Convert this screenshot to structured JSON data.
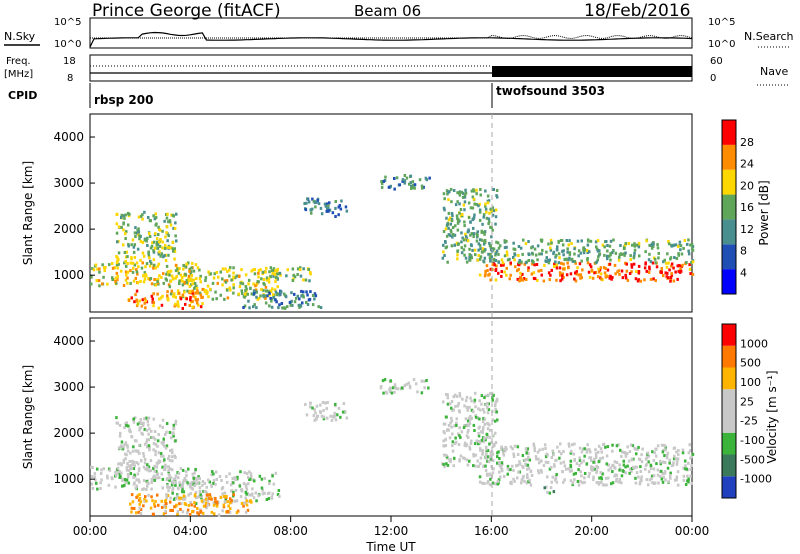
{
  "header": {
    "title": "Prince George (fitACF)",
    "beam": "Beam 06",
    "date": "18/Feb/2016"
  },
  "noise_panel": {
    "left_label": "N.Sky",
    "right_label": "N.Search",
    "left_ticks": [
      "10^5",
      "10^0"
    ],
    "right_ticks": [
      "10^5",
      "10^0"
    ]
  },
  "freq_panel": {
    "left_label_line1": "Freq.",
    "left_label_line2": "[MHz]",
    "right_label": "Nave",
    "left_ticks": [
      "18",
      "8"
    ],
    "right_ticks": [
      "60",
      "0"
    ]
  },
  "cpid_panel": {
    "label": "CPID",
    "programs": [
      {
        "name": "rbsp 200",
        "start_hour": 0
      },
      {
        "name": "twofsound 3503",
        "start_hour": 16
      }
    ]
  },
  "x_axis": {
    "label": "Time UT",
    "ticks": [
      "00:00",
      "04:00",
      "08:00",
      "12:00",
      "16:00",
      "20:00",
      "00:00"
    ],
    "range_hours": [
      0,
      24
    ]
  },
  "chart_data": [
    {
      "type": "heatmap",
      "name": "power",
      "ylabel": "Slant Range [km]",
      "yticks": [
        1000,
        2000,
        3000,
        4000
      ],
      "ylim": [
        200,
        4500
      ],
      "colorbar_label": "Power [dB]",
      "colorbar_ticks": [
        "28",
        "24",
        "20",
        "16",
        "12",
        "8",
        "4"
      ],
      "colors": [
        "#0000ff",
        "#1f4fb4",
        "#4a8f8f",
        "#5fa55a",
        "#ffd700",
        "#ff8c00",
        "#ff0000"
      ],
      "regions": [
        {
          "t0": 0.0,
          "t1": 4.2,
          "r0": 800,
          "r1": 1300,
          "level": 0.65
        },
        {
          "t0": 1.0,
          "t1": 3.4,
          "r0": 1250,
          "r1": 2400,
          "level": 0.55
        },
        {
          "t0": 3.0,
          "t1": 7.5,
          "r0": 500,
          "r1": 1200,
          "level": 0.6
        },
        {
          "t0": 1.5,
          "t1": 4.5,
          "r0": 300,
          "r1": 700,
          "level": 0.8
        },
        {
          "t0": 6.0,
          "t1": 9.2,
          "r0": 300,
          "r1": 700,
          "level": 0.35
        },
        {
          "t0": 7.0,
          "t1": 8.8,
          "r0": 900,
          "r1": 1200,
          "level": 0.5
        },
        {
          "t0": 8.5,
          "t1": 10.2,
          "r0": 2300,
          "r1": 2700,
          "level": 0.3
        },
        {
          "t0": 11.5,
          "t1": 13.5,
          "r0": 2900,
          "r1": 3200,
          "level": 0.35
        },
        {
          "t0": 14.0,
          "t1": 16.2,
          "r0": 1300,
          "r1": 2900,
          "level": 0.45
        },
        {
          "t0": 15.5,
          "t1": 24.0,
          "r0": 900,
          "r1": 1300,
          "level": 0.9
        },
        {
          "t0": 15.5,
          "t1": 24.0,
          "r0": 1300,
          "r1": 1800,
          "level": 0.45
        }
      ]
    },
    {
      "type": "heatmap",
      "name": "velocity",
      "ylabel": "Slant Range [km]",
      "yticks": [
        1000,
        2000,
        3000,
        4000
      ],
      "ylim": [
        200,
        4500
      ],
      "colorbar_label": "Velocity [m s⁻¹]",
      "colorbar_ticks": [
        "1000",
        "500",
        "100",
        "25",
        "-25",
        "-100",
        "-500",
        "-1000"
      ],
      "colors": [
        "#2040c0",
        "#3a7a5a",
        "#3cb43c",
        "#c8c8c8",
        "#c8c8c8",
        "#ffb400",
        "#ff7800",
        "#ff0000"
      ],
      "regions": [
        {
          "t0": 0.0,
          "t1": 4.2,
          "r0": 800,
          "r1": 1300,
          "level": 0.4
        },
        {
          "t0": 1.0,
          "t1": 3.4,
          "r0": 1250,
          "r1": 2400,
          "level": 0.45
        },
        {
          "t0": 3.0,
          "t1": 7.5,
          "r0": 500,
          "r1": 1200,
          "level": 0.45
        },
        {
          "t0": 1.5,
          "t1": 6.5,
          "r0": 250,
          "r1": 700,
          "level": 0.75
        },
        {
          "t0": 8.5,
          "t1": 10.2,
          "r0": 2300,
          "r1": 2700,
          "level": 0.45
        },
        {
          "t0": 11.5,
          "t1": 13.5,
          "r0": 2900,
          "r1": 3200,
          "level": 0.45
        },
        {
          "t0": 14.0,
          "t1": 16.2,
          "r0": 1300,
          "r1": 2900,
          "level": 0.45
        },
        {
          "t0": 15.5,
          "t1": 24.0,
          "r0": 900,
          "r1": 1800,
          "level": 0.45
        },
        {
          "t0": 18.0,
          "t1": 18.5,
          "r0": 700,
          "r1": 900,
          "level": 0.3
        }
      ]
    }
  ]
}
